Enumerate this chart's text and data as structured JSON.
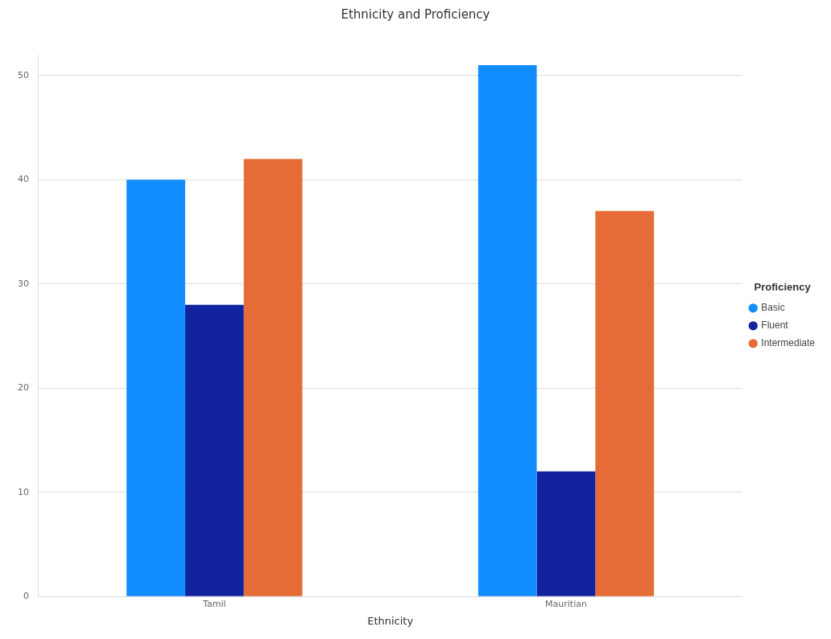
{
  "chart_data": {
    "type": "bar",
    "title": "Ethnicity and Proficiency",
    "xlabel": "Ethnicity",
    "legend_title": "Proficiency",
    "categories": [
      "Tamil",
      "Mauritian"
    ],
    "series": [
      {
        "name": "Basic",
        "color": "#118dff",
        "values": [
          40,
          51
        ]
      },
      {
        "name": "Fluent",
        "color": "#12239e",
        "values": [
          28,
          12
        ]
      },
      {
        "name": "Intermediate",
        "color": "#e66c37",
        "values": [
          42,
          37
        ]
      }
    ],
    "ylim": [
      0,
      52
    ],
    "yticks": [
      0,
      10,
      20,
      30,
      40,
      50
    ],
    "grid": "y",
    "legend": "right"
  }
}
